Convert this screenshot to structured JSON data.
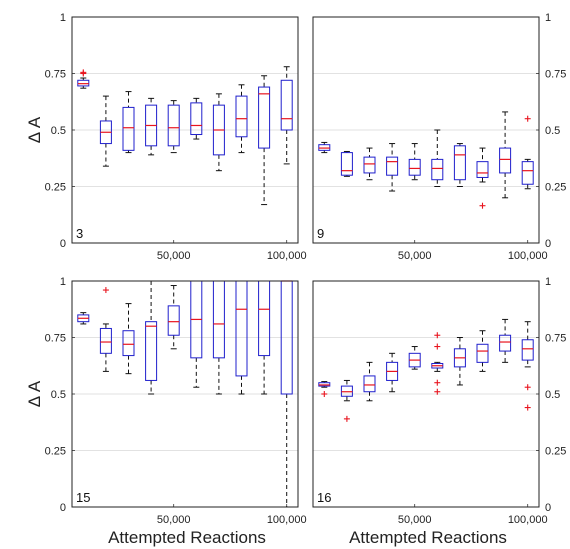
{
  "chart_data": [
    {
      "type": "box",
      "panel_label": "3",
      "ylabel": "Δ A",
      "xlabel": "",
      "ylim": [
        0,
        1
      ],
      "xlim": [
        5000,
        105000
      ],
      "yticks": [
        "0",
        "0.25",
        "0.5",
        "0.75",
        "1"
      ],
      "xticks": [
        "50,000",
        "100,000"
      ],
      "xtick_values": [
        50000,
        100000
      ],
      "grid": true,
      "colors": {
        "box": "#1f1fcc",
        "median": "#e8141e",
        "whisker": "#111111",
        "outlier": "#e8141e",
        "grid": "#d9d9d9"
      },
      "boxes": [
        {
          "x": 10000,
          "q1": 0.695,
          "median": 0.705,
          "q3": 0.72,
          "whislo": 0.685,
          "whishi": 0.73,
          "outliers": [
            0.755,
            0.75
          ]
        },
        {
          "x": 20000,
          "q1": 0.44,
          "median": 0.49,
          "q3": 0.54,
          "whislo": 0.34,
          "whishi": 0.65,
          "outliers": []
        },
        {
          "x": 30000,
          "q1": 0.41,
          "median": 0.51,
          "q3": 0.6,
          "whislo": 0.4,
          "whishi": 0.67,
          "outliers": []
        },
        {
          "x": 40000,
          "q1": 0.43,
          "median": 0.52,
          "q3": 0.61,
          "whislo": 0.39,
          "whishi": 0.64,
          "outliers": []
        },
        {
          "x": 50000,
          "q1": 0.43,
          "median": 0.51,
          "q3": 0.61,
          "whislo": 0.4,
          "whishi": 0.63,
          "outliers": []
        },
        {
          "x": 60000,
          "q1": 0.48,
          "median": 0.52,
          "q3": 0.62,
          "whislo": 0.46,
          "whishi": 0.64,
          "outliers": []
        },
        {
          "x": 70000,
          "q1": 0.39,
          "median": 0.5,
          "q3": 0.61,
          "whislo": 0.32,
          "whishi": 0.66,
          "outliers": []
        },
        {
          "x": 80000,
          "q1": 0.47,
          "median": 0.55,
          "q3": 0.65,
          "whislo": 0.4,
          "whishi": 0.7,
          "outliers": []
        },
        {
          "x": 90000,
          "q1": 0.42,
          "median": 0.66,
          "q3": 0.69,
          "whislo": 0.17,
          "whishi": 0.74,
          "outliers": []
        },
        {
          "x": 100000,
          "q1": 0.5,
          "median": 0.55,
          "q3": 0.72,
          "whislo": 0.35,
          "whishi": 0.78,
          "outliers": []
        }
      ]
    },
    {
      "type": "box",
      "panel_label": "9",
      "ylabel": "",
      "xlabel": "",
      "ylim": [
        0,
        1
      ],
      "xlim": [
        5000,
        105000
      ],
      "yticks": [
        "0",
        "0.25",
        "0.5",
        "0.75",
        "1"
      ],
      "xticks": [
        "50,000",
        "100,000"
      ],
      "xtick_values": [
        50000,
        100000
      ],
      "grid": true,
      "colors": {
        "box": "#1f1fcc",
        "median": "#e8141e",
        "whisker": "#111111",
        "outlier": "#e8141e",
        "grid": "#d9d9d9"
      },
      "boxes": [
        {
          "x": 10000,
          "q1": 0.41,
          "median": 0.42,
          "q3": 0.435,
          "whislo": 0.4,
          "whishi": 0.445,
          "outliers": []
        },
        {
          "x": 20000,
          "q1": 0.3,
          "median": 0.32,
          "q3": 0.4,
          "whislo": 0.295,
          "whishi": 0.405,
          "outliers": []
        },
        {
          "x": 30000,
          "q1": 0.31,
          "median": 0.35,
          "q3": 0.38,
          "whislo": 0.28,
          "whishi": 0.42,
          "outliers": []
        },
        {
          "x": 40000,
          "q1": 0.3,
          "median": 0.36,
          "q3": 0.38,
          "whislo": 0.23,
          "whishi": 0.44,
          "outliers": []
        },
        {
          "x": 50000,
          "q1": 0.3,
          "median": 0.33,
          "q3": 0.37,
          "whislo": 0.28,
          "whishi": 0.44,
          "outliers": []
        },
        {
          "x": 60000,
          "q1": 0.28,
          "median": 0.33,
          "q3": 0.37,
          "whislo": 0.25,
          "whishi": 0.5,
          "outliers": []
        },
        {
          "x": 70000,
          "q1": 0.28,
          "median": 0.39,
          "q3": 0.43,
          "whislo": 0.25,
          "whishi": 0.44,
          "outliers": []
        },
        {
          "x": 80000,
          "q1": 0.29,
          "median": 0.31,
          "q3": 0.36,
          "whislo": 0.27,
          "whishi": 0.42,
          "outliers": [
            0.165
          ]
        },
        {
          "x": 90000,
          "q1": 0.31,
          "median": 0.37,
          "q3": 0.42,
          "whislo": 0.2,
          "whishi": 0.58,
          "outliers": []
        },
        {
          "x": 100000,
          "q1": 0.26,
          "median": 0.32,
          "q3": 0.36,
          "whislo": 0.24,
          "whishi": 0.37,
          "outliers": [
            0.55
          ]
        }
      ]
    },
    {
      "type": "box",
      "panel_label": "15",
      "ylabel": "Δ A",
      "xlabel": "Attempted Reactions",
      "ylim": [
        0,
        1
      ],
      "xlim": [
        5000,
        105000
      ],
      "yticks": [
        "0",
        "0.25",
        "0.5",
        "0.75",
        "1"
      ],
      "xticks": [
        "50,000",
        "100,000"
      ],
      "xtick_values": [
        50000,
        100000
      ],
      "grid": true,
      "colors": {
        "box": "#1f1fcc",
        "median": "#e8141e",
        "whisker": "#111111",
        "outlier": "#e8141e",
        "grid": "#d9d9d9"
      },
      "boxes": [
        {
          "x": 10000,
          "q1": 0.82,
          "median": 0.835,
          "q3": 0.85,
          "whislo": 0.81,
          "whishi": 0.86,
          "outliers": []
        },
        {
          "x": 20000,
          "q1": 0.68,
          "median": 0.73,
          "q3": 0.79,
          "whislo": 0.6,
          "whishi": 0.81,
          "outliers": [
            0.96
          ]
        },
        {
          "x": 30000,
          "q1": 0.67,
          "median": 0.72,
          "q3": 0.78,
          "whislo": 0.59,
          "whishi": 0.9,
          "outliers": []
        },
        {
          "x": 40000,
          "q1": 0.56,
          "median": 0.8,
          "q3": 0.82,
          "whislo": 0.5,
          "whishi": 1.0,
          "outliers": []
        },
        {
          "x": 50000,
          "q1": 0.76,
          "median": 0.82,
          "q3": 0.89,
          "whislo": 0.7,
          "whishi": 0.98,
          "outliers": []
        },
        {
          "x": 60000,
          "q1": 0.66,
          "median": 0.83,
          "q3": 1.0,
          "whislo": 0.53,
          "whishi": 1.0,
          "outliers": []
        },
        {
          "x": 70000,
          "q1": 0.66,
          "median": 0.81,
          "q3": 1.0,
          "whislo": 0.5,
          "whishi": 1.0,
          "outliers": []
        },
        {
          "x": 80000,
          "q1": 0.58,
          "median": 0.875,
          "q3": 1.0,
          "whislo": 0.5,
          "whishi": 1.0,
          "outliers": []
        },
        {
          "x": 90000,
          "q1": 0.67,
          "median": 0.875,
          "q3": 1.0,
          "whislo": 0.5,
          "whishi": 1.0,
          "outliers": []
        },
        {
          "x": 100000,
          "q1": 0.5,
          "median": 1.0,
          "q3": 1.0,
          "whislo": 0.0,
          "whishi": 1.0,
          "outliers": []
        }
      ]
    },
    {
      "type": "box",
      "panel_label": "16",
      "ylabel": "",
      "xlabel": "Attempted Reactions",
      "ylim": [
        0,
        1
      ],
      "xlim": [
        5000,
        105000
      ],
      "yticks": [
        "0",
        "0.25",
        "0.5",
        "0.75",
        "1"
      ],
      "xticks": [
        "50,000",
        "100,000"
      ],
      "xtick_values": [
        50000,
        100000
      ],
      "grid": true,
      "colors": {
        "box": "#1f1fcc",
        "median": "#e8141e",
        "whisker": "#111111",
        "outlier": "#e8141e",
        "grid": "#d9d9d9"
      },
      "boxes": [
        {
          "x": 10000,
          "q1": 0.535,
          "median": 0.54,
          "q3": 0.55,
          "whislo": 0.53,
          "whishi": 0.555,
          "outliers": [
            0.5
          ]
        },
        {
          "x": 20000,
          "q1": 0.49,
          "median": 0.51,
          "q3": 0.535,
          "whislo": 0.47,
          "whishi": 0.56,
          "outliers": [
            0.39
          ]
        },
        {
          "x": 30000,
          "q1": 0.51,
          "median": 0.54,
          "q3": 0.58,
          "whislo": 0.47,
          "whishi": 0.64,
          "outliers": []
        },
        {
          "x": 40000,
          "q1": 0.56,
          "median": 0.6,
          "q3": 0.64,
          "whislo": 0.51,
          "whishi": 0.68,
          "outliers": []
        },
        {
          "x": 50000,
          "q1": 0.62,
          "median": 0.65,
          "q3": 0.68,
          "whislo": 0.61,
          "whishi": 0.71,
          "outliers": []
        },
        {
          "x": 60000,
          "q1": 0.615,
          "median": 0.625,
          "q3": 0.635,
          "whislo": 0.6,
          "whishi": 0.64,
          "outliers": [
            0.76,
            0.71,
            0.55,
            0.51
          ]
        },
        {
          "x": 70000,
          "q1": 0.62,
          "median": 0.66,
          "q3": 0.7,
          "whislo": 0.54,
          "whishi": 0.75,
          "outliers": []
        },
        {
          "x": 80000,
          "q1": 0.64,
          "median": 0.69,
          "q3": 0.72,
          "whislo": 0.6,
          "whishi": 0.78,
          "outliers": []
        },
        {
          "x": 90000,
          "q1": 0.69,
          "median": 0.73,
          "q3": 0.76,
          "whislo": 0.64,
          "whishi": 0.83,
          "outliers": []
        },
        {
          "x": 100000,
          "q1": 0.65,
          "median": 0.7,
          "q3": 0.74,
          "whislo": 0.62,
          "whishi": 0.82,
          "outliers": [
            0.53,
            0.44
          ]
        }
      ]
    }
  ]
}
